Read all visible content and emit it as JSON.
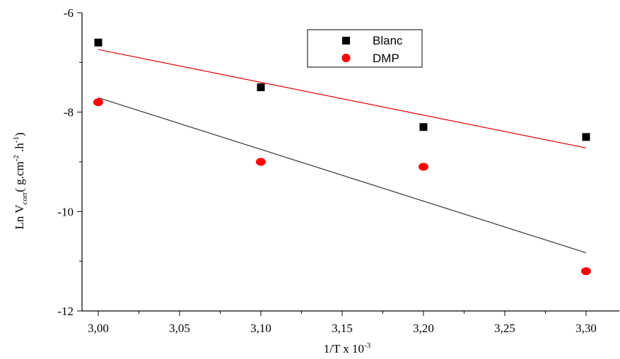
{
  "chart_data": {
    "type": "scatter",
    "xlabel": "1/T x 10",
    "xlabel_sup": "-3",
    "ylabel": {
      "prefix": "Ln V",
      "sub": "corr",
      "mid1": "( g.cm",
      "sup1": "-2",
      "mid2": " .h",
      "sup2": "-1",
      "suffix": ")"
    },
    "xlim": [
      2.9,
      3.33
    ],
    "ylim": [
      -12,
      -6
    ],
    "xticks": [
      3.0,
      3.05,
      3.1,
      3.15,
      3.2,
      3.25,
      3.3
    ],
    "xtick_labels": [
      "3,00",
      "3,05",
      "3,10",
      "3,15",
      "3,20",
      "3,25",
      "3,30"
    ],
    "yticks": [
      -6,
      -8,
      -10,
      -12
    ],
    "ytick_labels": [
      "-6",
      "-8",
      "-10",
      "-12"
    ],
    "legend_position": "top-center",
    "series": [
      {
        "name": "Blanc",
        "marker": "square",
        "color": "#000000",
        "x": [
          3.0,
          3.1,
          3.2,
          3.3
        ],
        "y": [
          -6.6,
          -7.5,
          -8.3,
          -8.5
        ],
        "fit": {
          "x": [
            3.0,
            3.3
          ],
          "y": [
            -6.74,
            -8.72
          ],
          "color": "#e00000"
        }
      },
      {
        "name": "DMP",
        "marker": "circle",
        "color": "#ff0000",
        "x": [
          3.0,
          3.1,
          3.2,
          3.3
        ],
        "y": [
          -7.8,
          -9.0,
          -9.1,
          -11.2
        ],
        "fit": {
          "x": [
            3.0,
            3.3
          ],
          "y": [
            -7.71,
            -10.83
          ],
          "color": "#333333"
        }
      }
    ]
  }
}
